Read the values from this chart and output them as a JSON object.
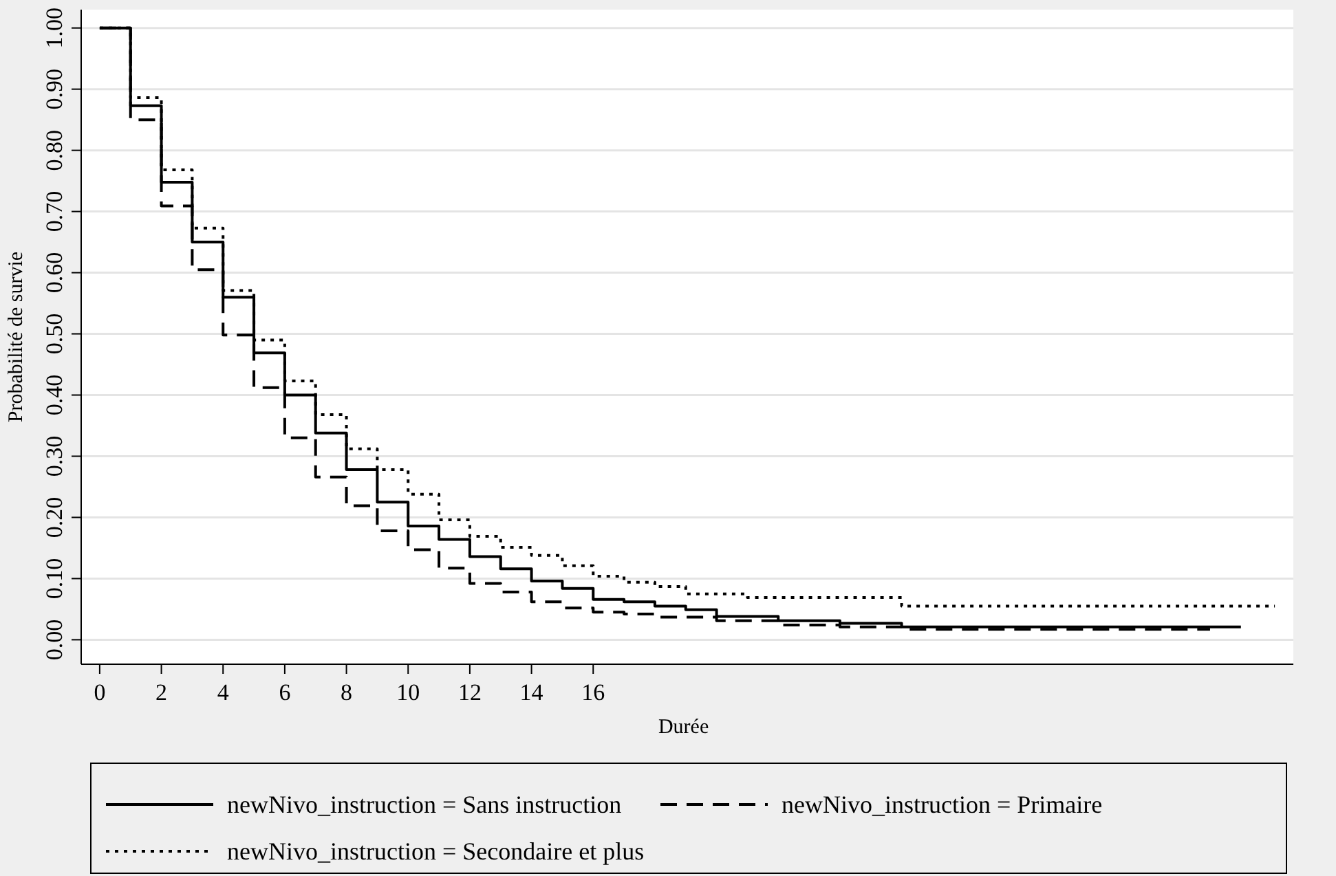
{
  "chart_data": {
    "type": "step",
    "xlabel": "Durée",
    "ylabel": "Probabilité de survie",
    "xlim": [
      -0.6,
      38.7
    ],
    "xticks": [
      0,
      2,
      4,
      6,
      8,
      10,
      12,
      14,
      16
    ],
    "ylim": [
      -0.04,
      1.03
    ],
    "yticks": [
      {
        "value": 0,
        "label": "0.00"
      },
      {
        "value": 0.1,
        "label": "0.10"
      },
      {
        "value": 0.2,
        "label": "0.20"
      },
      {
        "value": 0.3,
        "label": "0.30"
      },
      {
        "value": 0.4,
        "label": "0.40"
      },
      {
        "value": 0.5,
        "label": "0.50"
      },
      {
        "value": 0.6,
        "label": "0.60"
      },
      {
        "value": 0.7,
        "label": "0.70"
      },
      {
        "value": 0.8,
        "label": "0.80"
      },
      {
        "value": 0.9,
        "label": "0.90"
      },
      {
        "value": 1,
        "label": "1.00"
      }
    ],
    "grid": "y",
    "legend": "bottom",
    "series": [
      {
        "name": "newNivo_instruction = Sans instruction",
        "color": "#000000",
        "line_style": "solid",
        "x": [
          0,
          1,
          2,
          3,
          4,
          5,
          6,
          7,
          8,
          9,
          10,
          11,
          12,
          13,
          14,
          15,
          16,
          17,
          18,
          19,
          20,
          22,
          24,
          26,
          37
        ],
        "values": [
          1,
          0.873,
          0.748,
          0.65,
          0.56,
          0.469,
          0.4,
          0.338,
          0.278,
          0.225,
          0.186,
          0.164,
          0.136,
          0.116,
          0.096,
          0.084,
          0.066,
          0.062,
          0.055,
          0.049,
          0.038,
          0.031,
          0.027,
          0.021,
          0.021
        ]
      },
      {
        "name": "newNivo_instruction = Primaire",
        "color": "#000000",
        "line_style": "dashed",
        "x": [
          0,
          1,
          2,
          3,
          4,
          5,
          6,
          7,
          8,
          9,
          10,
          11,
          12,
          13,
          14,
          15,
          16,
          17,
          18,
          20,
          22,
          24,
          26,
          36
        ],
        "values": [
          1,
          0.85,
          0.709,
          0.605,
          0.498,
          0.412,
          0.33,
          0.266,
          0.219,
          0.178,
          0.147,
          0.117,
          0.092,
          0.078,
          0.062,
          0.052,
          0.045,
          0.042,
          0.037,
          0.031,
          0.024,
          0.021,
          0.017,
          0.017
        ]
      },
      {
        "name": "newNivo_instruction = Secondaire et plus",
        "color": "#000000",
        "line_style": "dotted",
        "x": [
          0,
          1,
          2,
          3,
          4,
          5,
          6,
          7,
          8,
          9,
          10,
          11,
          12,
          13,
          14,
          15,
          16,
          17,
          18,
          19,
          21,
          26,
          38.1
        ],
        "values": [
          1,
          0.886,
          0.768,
          0.673,
          0.571,
          0.49,
          0.423,
          0.368,
          0.312,
          0.278,
          0.238,
          0.196,
          0.169,
          0.151,
          0.138,
          0.121,
          0.104,
          0.094,
          0.087,
          0.075,
          0.069,
          0.055,
          0.055
        ]
      }
    ]
  }
}
